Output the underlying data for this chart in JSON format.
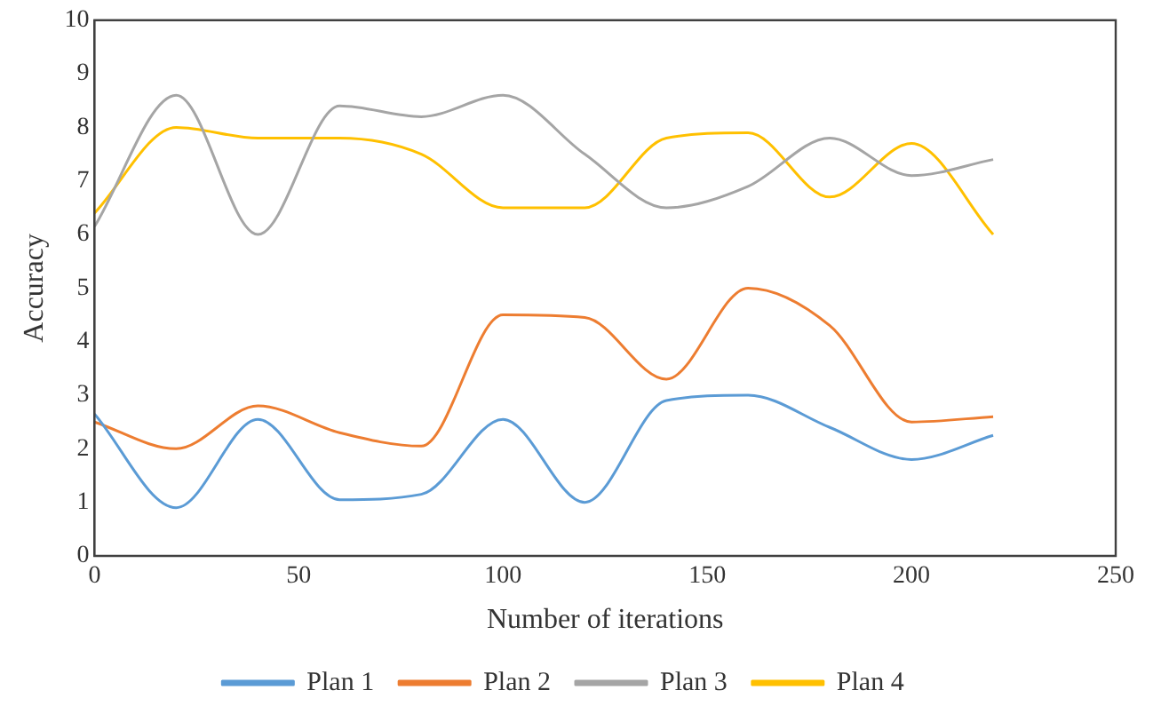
{
  "chart_data": {
    "type": "line",
    "xlabel": "Number of iterations",
    "ylabel": "Accuracy",
    "x": [
      0,
      20,
      40,
      60,
      80,
      100,
      120,
      140,
      160,
      180,
      200,
      220
    ],
    "series": [
      {
        "name": "Plan 1",
        "color": "#5b9bd5",
        "values": [
          2.65,
          0.9,
          2.55,
          1.05,
          1.15,
          2.55,
          1.0,
          2.9,
          3.0,
          2.4,
          1.8,
          2.25
        ]
      },
      {
        "name": "Plan 2",
        "color": "#ed7d31",
        "values": [
          2.5,
          2.0,
          2.8,
          2.3,
          2.05,
          4.5,
          4.45,
          3.3,
          5.0,
          4.3,
          2.5,
          2.6
        ]
      },
      {
        "name": "Plan 3",
        "color": "#a5a5a5",
        "values": [
          6.15,
          8.6,
          6.0,
          8.4,
          8.2,
          8.6,
          7.5,
          6.5,
          6.9,
          7.8,
          7.1,
          7.4
        ]
      },
      {
        "name": "Plan 4",
        "color": "#ffc000",
        "values": [
          6.4,
          8.0,
          7.8,
          7.8,
          7.5,
          6.5,
          6.5,
          7.8,
          7.9,
          6.7,
          7.7,
          6.0
        ]
      }
    ],
    "xlim": [
      0,
      250
    ],
    "xticks": [
      0,
      50,
      100,
      150,
      200,
      250
    ],
    "ylim": [
      0,
      10
    ],
    "yticks": [
      0,
      1,
      2,
      3,
      4,
      5,
      6,
      7,
      8,
      9,
      10
    ],
    "grid": false,
    "legend": "bottom",
    "marker": "none",
    "line_style": "solid"
  }
}
